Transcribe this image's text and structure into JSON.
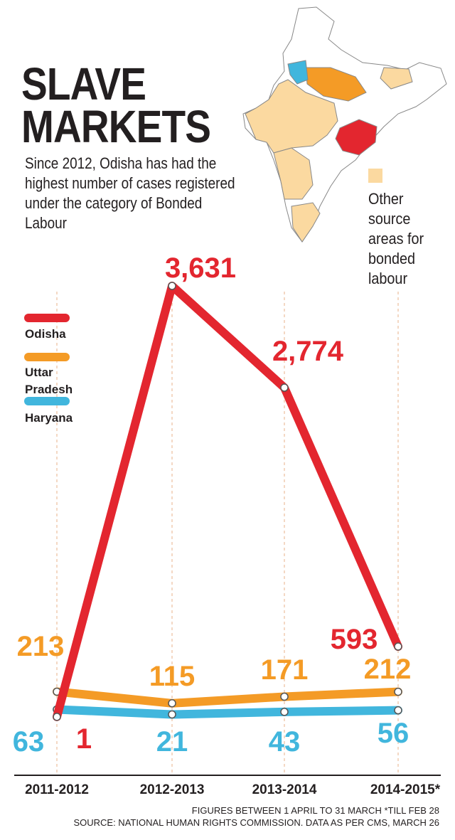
{
  "chart_data": {
    "type": "line",
    "title": "SLAVE MARKETS",
    "subtitle": "Since 2012, Odisha has had the highest number of cases registered under the category of Bonded Labour",
    "map_legend": "Other source areas for bonded labour",
    "categories": [
      "2011-2012",
      "2012-2013",
      "2013-2014",
      "2014-2015*"
    ],
    "series": [
      {
        "name": "Odisha",
        "color": "#e3262f",
        "values": [
          1,
          3631,
          2774,
          593
        ],
        "value_labels": [
          "1",
          "3,631",
          "2,774",
          "593"
        ]
      },
      {
        "name": "Uttar Pradesh",
        "color": "#f49b26",
        "values": [
          213,
          115,
          171,
          212
        ]
      },
      {
        "name": "Haryana",
        "color": "#41b6dd",
        "values": [
          63,
          21,
          43,
          56
        ]
      }
    ],
    "notes": [
      "FIGURES BETWEEN 1 APRIL TO 31 MARCH *TILL FEB 28",
      "SOURCE: NATIONAL HUMAN RIGHTS COMMISSION. DATA AS PER CMS, MARCH 26"
    ]
  }
}
